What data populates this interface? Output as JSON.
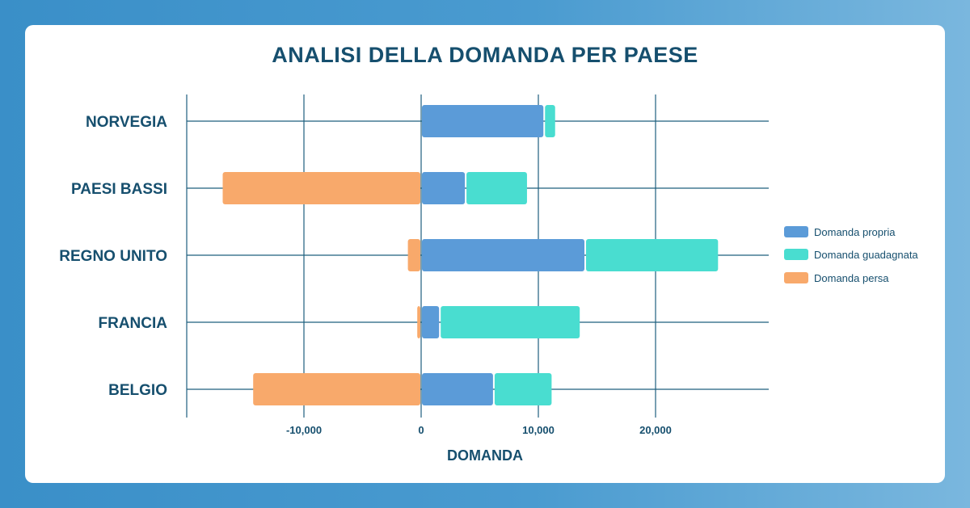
{
  "chart_data": {
    "type": "bar",
    "orientation": "horizontal",
    "stacked": true,
    "title": "ANALISI DELLA DOMANDA PER PAESE",
    "xlabel": "DOMANDA",
    "ylabel": "",
    "xlim": [
      -20000,
      29000
    ],
    "xticks": [
      -10000,
      0,
      10000,
      20000
    ],
    "xtick_labels": [
      "-10,000",
      "0",
      "10,000",
      "20,000"
    ],
    "grid": true,
    "legend_position": "right",
    "categories": [
      "NORVEGIA",
      "PAESI BASSI",
      "REGNO UNITO",
      "FRANCIA",
      "BELGIO"
    ],
    "series": [
      {
        "name": "Domanda propria",
        "color": "#5b9bd8",
        "values": [
          10500,
          3800,
          14000,
          1600,
          6200
        ]
      },
      {
        "name": "Domanda guadagnata",
        "color": "#49ddd0",
        "values": [
          1000,
          5300,
          11400,
          12000,
          5000
        ]
      },
      {
        "name": "Domanda persa",
        "color": "#f8a96b",
        "values": [
          0,
          -17000,
          -1200,
          -400,
          -14400
        ]
      }
    ]
  }
}
